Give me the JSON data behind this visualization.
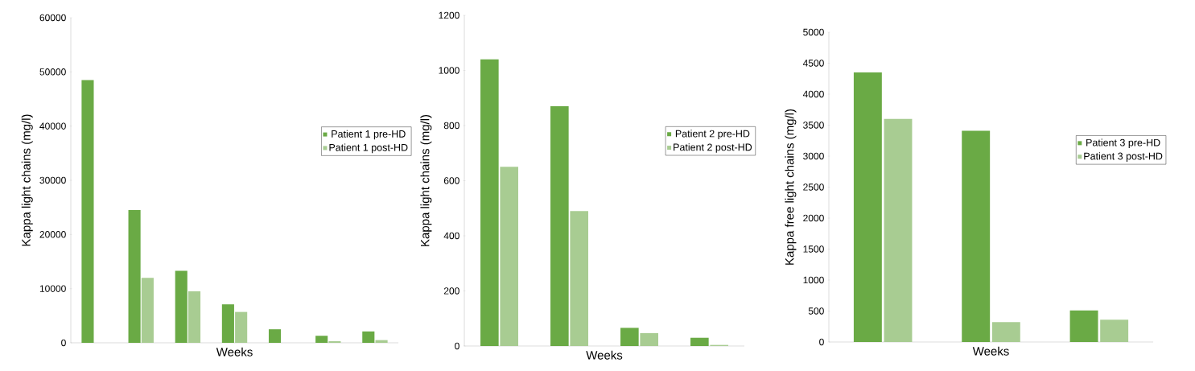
{
  "chart_data": [
    {
      "type": "bar",
      "xlabel": "Weeks",
      "ylabel": "Kappa light chains (mg/l)",
      "categories": [
        null,
        null,
        null,
        null,
        null,
        null,
        null
      ],
      "series": [
        {
          "name": "Patient 1 pre-HD",
          "color": "#6aaa45",
          "values": [
            48500,
            24500,
            13300,
            7100,
            2500,
            1300,
            2100
          ]
        },
        {
          "name": "Patient 1 post-HD",
          "color": "#a8cc92",
          "values": [
            0,
            12000,
            9500,
            5700,
            0,
            300,
            500
          ]
        }
      ],
      "ylim": [
        0,
        60000
      ],
      "yticks": [
        0,
        10000,
        20000,
        30000,
        40000,
        50000,
        60000
      ],
      "legend": "right"
    },
    {
      "type": "bar",
      "xlabel": "Weeks",
      "ylabel": "Kappa light chains (mg/l)",
      "categories": [
        null,
        null,
        null,
        null
      ],
      "series": [
        {
          "name": "Patient 2 pre-HD",
          "color": "#6aaa45",
          "values": [
            1040,
            870,
            66,
            30
          ]
        },
        {
          "name": "Patient 2 post-HD",
          "color": "#a8cc92",
          "values": [
            650,
            490,
            47,
            4
          ]
        }
      ],
      "ylim": [
        0,
        1200
      ],
      "yticks": [
        0,
        200,
        400,
        600,
        800,
        1000,
        1200
      ],
      "legend": "right"
    },
    {
      "type": "bar",
      "xlabel": "Weeks",
      "ylabel": "Kappa free light chains (mg/l)",
      "categories": [
        null,
        null,
        null
      ],
      "series": [
        {
          "name": "Patient 3 pre-HD",
          "color": "#6aaa45",
          "values": [
            4350,
            3410,
            510
          ]
        },
        {
          "name": "Patient 3 post-HD",
          "color": "#a8cc92",
          "values": [
            3600,
            320,
            360
          ]
        }
      ],
      "ylim": [
        0,
        5000
      ],
      "yticks": [
        0,
        500,
        1000,
        1500,
        2000,
        2500,
        3000,
        3500,
        4000,
        4500,
        5000
      ],
      "legend": "right"
    }
  ]
}
